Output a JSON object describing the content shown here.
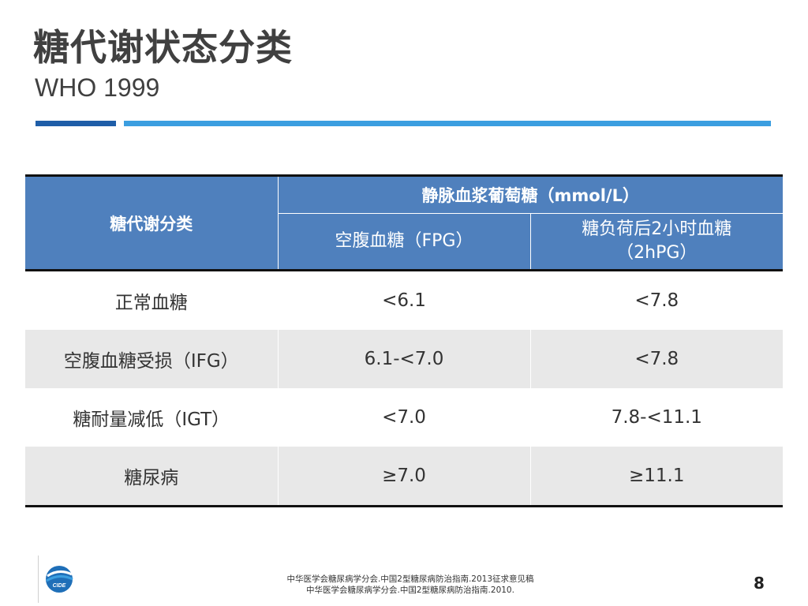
{
  "slide": {
    "title": "糖代谢状态分类",
    "subtitle": "WHO 1999",
    "page_number": "8"
  },
  "table": {
    "header_category": "糖代谢分类",
    "header_group": "静脉血浆葡萄糖（mmol/L）",
    "header_fpg": "空腹血糖（FPG）",
    "header_2hpg_line1": "糖负荷后2小时血糖",
    "header_2hpg_line2": "（2hPG）",
    "rows": [
      {
        "category": "正常血糖",
        "fpg": "<6.1",
        "hpg": "<7.8"
      },
      {
        "category": "空腹血糖受损（IFG）",
        "fpg": "6.1-<7.0",
        "hpg": "<7.8"
      },
      {
        "category": "糖耐量减低（IGT）",
        "fpg": "<7.0",
        "hpg": "7.8-<11.1"
      },
      {
        "category": "糖尿病",
        "fpg": "≥7.0",
        "hpg": "≥11.1"
      }
    ]
  },
  "references": {
    "line1": "中华医学会糖尿病学分会.中国2型糖尿病防治指南.2013征求意见稿",
    "line2": "中华医学会糖尿病学分会.中国2型糖尿病防治指南.2010."
  },
  "logo": {
    "icon": "cide-logo-icon",
    "text": "CIDE",
    "color_primary": "#1f6fb8",
    "color_secondary": "#3b9ee0"
  },
  "colors": {
    "header_bg": "#4f80bd",
    "stripe": "#e8e8e8",
    "accent_dark": "#1f5ea8",
    "accent_light": "#3b9ee0"
  }
}
